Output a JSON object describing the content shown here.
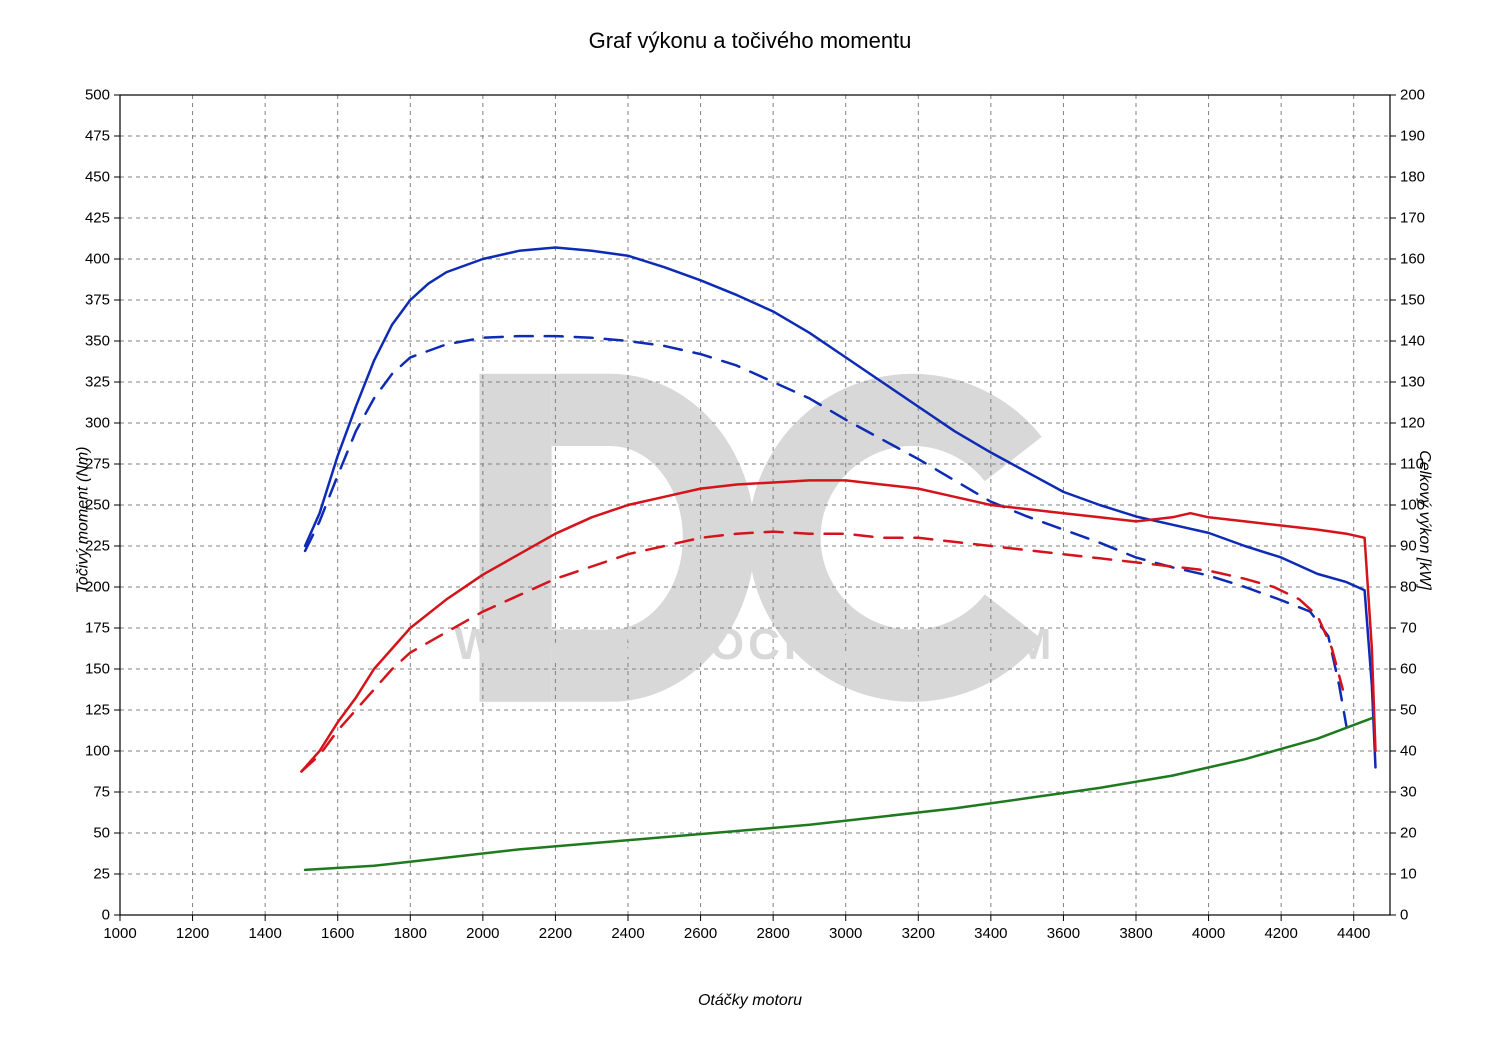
{
  "chart": {
    "type": "line",
    "title": "Graf výkonu a točivého momentu",
    "background_color": "#ffffff",
    "grid_color": "#808080",
    "grid_dash": "4 4",
    "axis_line_color": "#000000",
    "x_axis": {
      "label": "Otáčky motoru",
      "min": 1000,
      "max": 4500,
      "tick_step": 200,
      "ticks": [
        1000,
        1200,
        1400,
        1600,
        1800,
        2000,
        2200,
        2400,
        2600,
        2800,
        3000,
        3200,
        3400,
        3600,
        3800,
        4000,
        4200,
        4400
      ]
    },
    "y_left": {
      "label": "Točivý moment (Nm)",
      "min": 0,
      "max": 500,
      "tick_step": 25,
      "ticks": [
        0,
        25,
        50,
        75,
        100,
        125,
        150,
        175,
        200,
        225,
        250,
        275,
        300,
        325,
        350,
        375,
        400,
        425,
        450,
        475,
        500
      ]
    },
    "y_right": {
      "label": "Celkový výkon [kW]",
      "min": 0,
      "max": 200,
      "tick_step": 10,
      "ticks": [
        0,
        10,
        20,
        30,
        40,
        50,
        60,
        70,
        80,
        90,
        100,
        110,
        120,
        130,
        140,
        150,
        160,
        170,
        180,
        190,
        200
      ]
    },
    "line_width": 2.5,
    "series": {
      "torque_tuned_solid_blue": {
        "color": "#0d2bb5",
        "dash": "",
        "y_axis": "left",
        "points": [
          [
            1510,
            225
          ],
          [
            1550,
            245
          ],
          [
            1600,
            280
          ],
          [
            1650,
            310
          ],
          [
            1700,
            338
          ],
          [
            1750,
            360
          ],
          [
            1800,
            375
          ],
          [
            1850,
            385
          ],
          [
            1900,
            392
          ],
          [
            2000,
            400
          ],
          [
            2100,
            405
          ],
          [
            2200,
            407
          ],
          [
            2300,
            405
          ],
          [
            2400,
            402
          ],
          [
            2500,
            395
          ],
          [
            2600,
            387
          ],
          [
            2700,
            378
          ],
          [
            2800,
            368
          ],
          [
            2900,
            355
          ],
          [
            3000,
            340
          ],
          [
            3100,
            325
          ],
          [
            3200,
            310
          ],
          [
            3300,
            295
          ],
          [
            3400,
            282
          ],
          [
            3500,
            270
          ],
          [
            3600,
            258
          ],
          [
            3700,
            250
          ],
          [
            3800,
            243
          ],
          [
            3900,
            238
          ],
          [
            4000,
            233
          ],
          [
            4100,
            225
          ],
          [
            4200,
            218
          ],
          [
            4300,
            208
          ],
          [
            4380,
            203
          ],
          [
            4430,
            198
          ],
          [
            4450,
            140
          ],
          [
            4460,
            90
          ]
        ]
      },
      "torque_stock_dashed_blue": {
        "color": "#0d2bb5",
        "dash": "18 12",
        "y_axis": "left",
        "points": [
          [
            1510,
            222
          ],
          [
            1550,
            240
          ],
          [
            1600,
            268
          ],
          [
            1650,
            295
          ],
          [
            1700,
            315
          ],
          [
            1750,
            330
          ],
          [
            1800,
            340
          ],
          [
            1900,
            348
          ],
          [
            2000,
            352
          ],
          [
            2100,
            353
          ],
          [
            2200,
            353
          ],
          [
            2300,
            352
          ],
          [
            2400,
            350
          ],
          [
            2500,
            347
          ],
          [
            2600,
            342
          ],
          [
            2700,
            335
          ],
          [
            2800,
            325
          ],
          [
            2900,
            315
          ],
          [
            3000,
            302
          ],
          [
            3100,
            290
          ],
          [
            3200,
            278
          ],
          [
            3300,
            265
          ],
          [
            3400,
            252
          ],
          [
            3500,
            243
          ],
          [
            3600,
            235
          ],
          [
            3700,
            227
          ],
          [
            3800,
            218
          ],
          [
            3900,
            212
          ],
          [
            4000,
            207
          ],
          [
            4100,
            200
          ],
          [
            4200,
            192
          ],
          [
            4280,
            185
          ],
          [
            4330,
            170
          ],
          [
            4360,
            140
          ],
          [
            4380,
            115
          ]
        ]
      },
      "power_tuned_solid_red": {
        "color": "#d4131a",
        "dash": "",
        "y_axis": "right",
        "points": [
          [
            1500,
            35
          ],
          [
            1510,
            36
          ],
          [
            1550,
            40
          ],
          [
            1600,
            47
          ],
          [
            1650,
            53
          ],
          [
            1700,
            60
          ],
          [
            1750,
            65
          ],
          [
            1800,
            70
          ],
          [
            1900,
            77
          ],
          [
            2000,
            83
          ],
          [
            2100,
            88
          ],
          [
            2200,
            93
          ],
          [
            2300,
            97
          ],
          [
            2400,
            100
          ],
          [
            2500,
            102
          ],
          [
            2600,
            104
          ],
          [
            2700,
            105
          ],
          [
            2800,
            105.5
          ],
          [
            2900,
            106
          ],
          [
            3000,
            106
          ],
          [
            3100,
            105
          ],
          [
            3200,
            104
          ],
          [
            3300,
            102
          ],
          [
            3400,
            100
          ],
          [
            3500,
            99
          ],
          [
            3600,
            98
          ],
          [
            3700,
            97
          ],
          [
            3800,
            96
          ],
          [
            3900,
            97
          ],
          [
            3950,
            98
          ],
          [
            4000,
            97
          ],
          [
            4100,
            96
          ],
          [
            4200,
            95
          ],
          [
            4300,
            94
          ],
          [
            4380,
            93
          ],
          [
            4430,
            92
          ],
          [
            4450,
            65
          ],
          [
            4460,
            40
          ]
        ]
      },
      "power_stock_dashed_red": {
        "color": "#d4131a",
        "dash": "18 12",
        "y_axis": "right",
        "points": [
          [
            1500,
            35
          ],
          [
            1550,
            39
          ],
          [
            1600,
            45
          ],
          [
            1650,
            50
          ],
          [
            1700,
            55
          ],
          [
            1750,
            60
          ],
          [
            1800,
            64
          ],
          [
            1900,
            69
          ],
          [
            2000,
            74
          ],
          [
            2100,
            78
          ],
          [
            2200,
            82
          ],
          [
            2300,
            85
          ],
          [
            2400,
            88
          ],
          [
            2500,
            90
          ],
          [
            2600,
            92
          ],
          [
            2700,
            93
          ],
          [
            2800,
            93.5
          ],
          [
            2900,
            93
          ],
          [
            3000,
            93
          ],
          [
            3100,
            92
          ],
          [
            3200,
            92
          ],
          [
            3300,
            91
          ],
          [
            3400,
            90
          ],
          [
            3500,
            89
          ],
          [
            3600,
            88
          ],
          [
            3700,
            87
          ],
          [
            3800,
            86
          ],
          [
            3900,
            85
          ],
          [
            4000,
            84
          ],
          [
            4100,
            82
          ],
          [
            4180,
            80
          ],
          [
            4250,
            77
          ],
          [
            4300,
            73
          ],
          [
            4340,
            65
          ],
          [
            4370,
            55
          ]
        ]
      },
      "drag_green": {
        "color": "#1f7a1f",
        "dash": "",
        "y_axis": "right",
        "points": [
          [
            1510,
            11
          ],
          [
            1700,
            12
          ],
          [
            1900,
            14
          ],
          [
            2100,
            16
          ],
          [
            2300,
            17.5
          ],
          [
            2500,
            19
          ],
          [
            2700,
            20.5
          ],
          [
            2900,
            22
          ],
          [
            3100,
            24
          ],
          [
            3300,
            26
          ],
          [
            3500,
            28.5
          ],
          [
            3700,
            31
          ],
          [
            3900,
            34
          ],
          [
            4100,
            38
          ],
          [
            4300,
            43
          ],
          [
            4450,
            48
          ]
        ]
      }
    },
    "watermark": {
      "url": "WWW.DYNOCHECK.COM",
      "logo_text": "DC",
      "color": "#d8d8d8"
    }
  }
}
